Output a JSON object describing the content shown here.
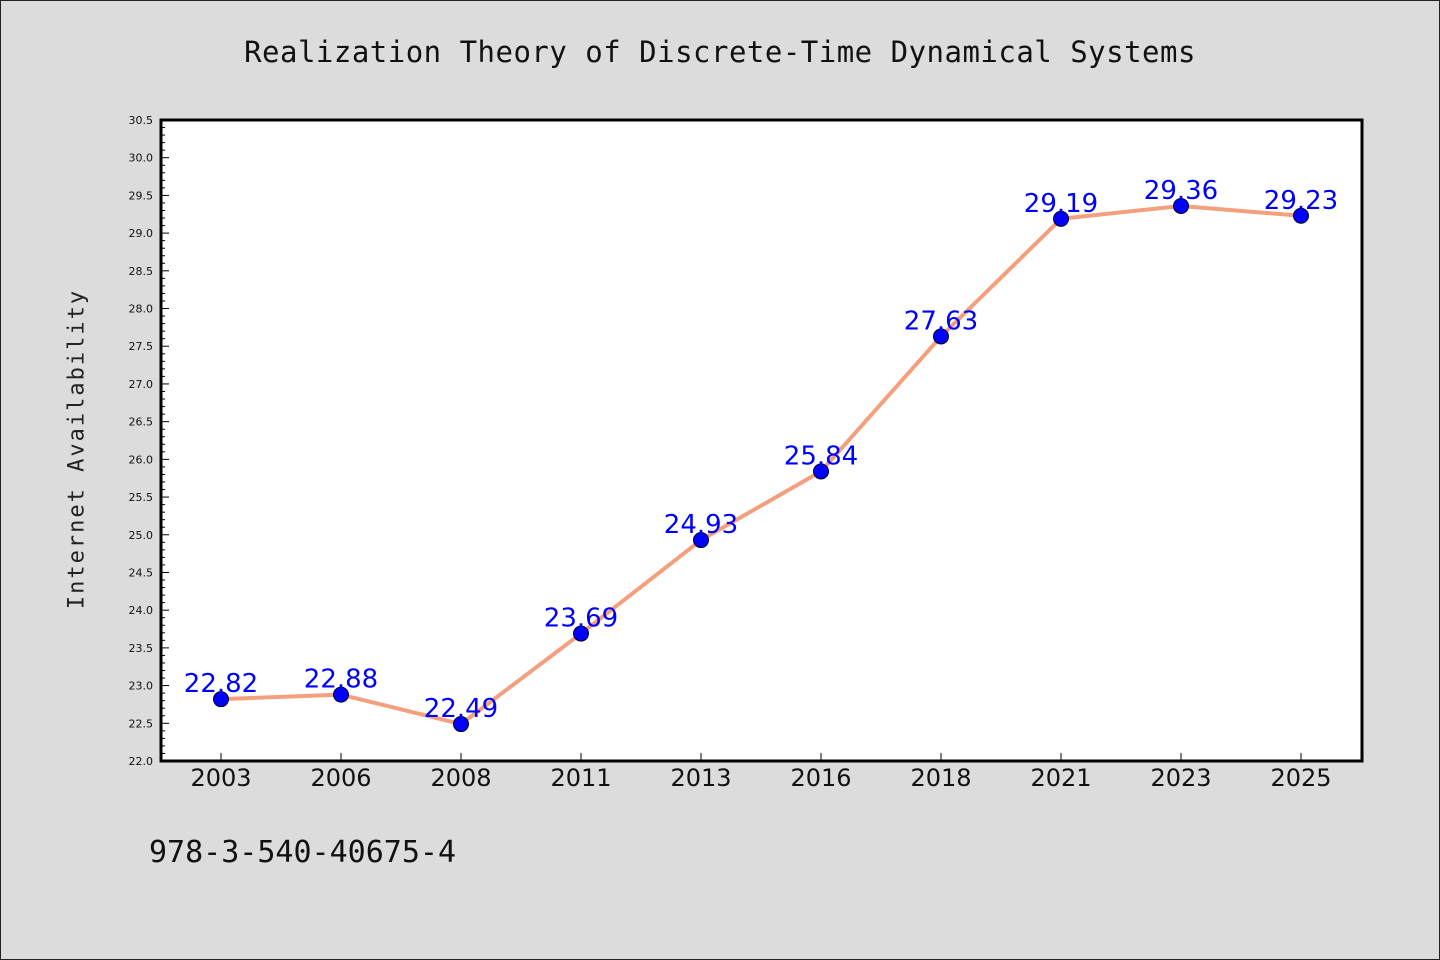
{
  "footer": {
    "code": "978-3-540-40675-4"
  },
  "chart_data": {
    "type": "line",
    "title": "Realization Theory of Discrete-Time Dynamical Systems",
    "xlabel": "",
    "ylabel": "Internet Availability",
    "categories": [
      "2003",
      "2006",
      "2008",
      "2011",
      "2013",
      "2016",
      "2018",
      "2021",
      "2023",
      "2025"
    ],
    "series": [
      {
        "values": [
          22.82,
          22.88,
          22.49,
          23.69,
          24.93,
          25.84,
          27.63,
          29.19,
          29.36,
          29.23
        ],
        "line_color": "#f4a07e",
        "marker_color": "#0000ff"
      }
    ],
    "ylim": [
      22.0,
      30.5
    ],
    "yticks": [
      "22.0",
      "22.5",
      "23.0",
      "23.5",
      "24.0",
      "24.5",
      "25.0",
      "25.5",
      "26.0",
      "26.5",
      "27.0",
      "27.5",
      "28.0",
      "28.5",
      "29.0",
      "29.5",
      "30.0",
      "30.5"
    ],
    "data_labels": [
      "22.82",
      "22.88",
      "22.49",
      "23.69",
      "24.93",
      "25.84",
      "27.63",
      "29.19",
      "29.36",
      "29.23"
    ],
    "grid": false,
    "legend": "none"
  }
}
